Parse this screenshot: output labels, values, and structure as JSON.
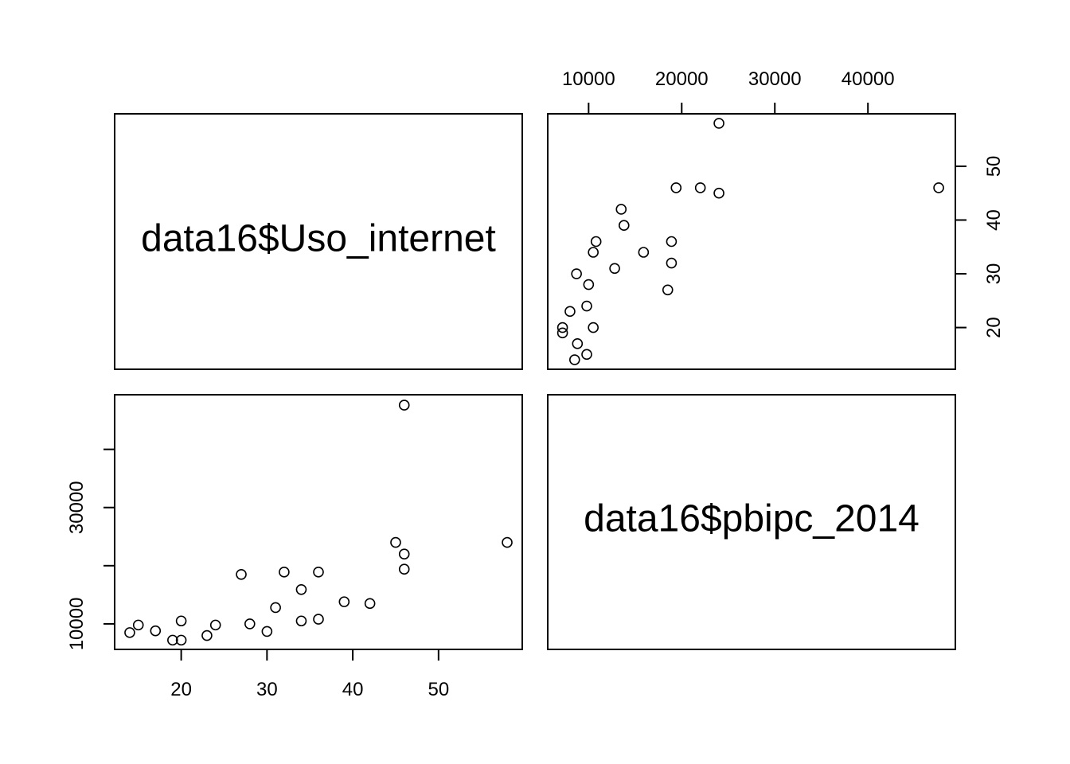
{
  "chart_data": {
    "type": "scatter",
    "variables": [
      "data16$Uso_internet",
      "data16$pbipc_2014"
    ],
    "points": [
      {
        "uso_internet": 14,
        "pbipc_2014": 8500
      },
      {
        "uso_internet": 15,
        "pbipc_2014": 9800
      },
      {
        "uso_internet": 17,
        "pbipc_2014": 8800
      },
      {
        "uso_internet": 19,
        "pbipc_2014": 7200
      },
      {
        "uso_internet": 20,
        "pbipc_2014": 7200
      },
      {
        "uso_internet": 20,
        "pbipc_2014": 10500
      },
      {
        "uso_internet": 23,
        "pbipc_2014": 8000
      },
      {
        "uso_internet": 24,
        "pbipc_2014": 9800
      },
      {
        "uso_internet": 27,
        "pbipc_2014": 18500
      },
      {
        "uso_internet": 28,
        "pbipc_2014": 10000
      },
      {
        "uso_internet": 30,
        "pbipc_2014": 8700
      },
      {
        "uso_internet": 31,
        "pbipc_2014": 12800
      },
      {
        "uso_internet": 32,
        "pbipc_2014": 18900
      },
      {
        "uso_internet": 34,
        "pbipc_2014": 10500
      },
      {
        "uso_internet": 34,
        "pbipc_2014": 15900
      },
      {
        "uso_internet": 36,
        "pbipc_2014": 10800
      },
      {
        "uso_internet": 36,
        "pbipc_2014": 18900
      },
      {
        "uso_internet": 39,
        "pbipc_2014": 13800
      },
      {
        "uso_internet": 42,
        "pbipc_2014": 13500
      },
      {
        "uso_internet": 45,
        "pbipc_2014": 24000
      },
      {
        "uso_internet": 46,
        "pbipc_2014": 19400
      },
      {
        "uso_internet": 46,
        "pbipc_2014": 22000
      },
      {
        "uso_internet": 46,
        "pbipc_2014": 47600
      },
      {
        "uso_internet": 58,
        "pbipc_2014": 24000
      }
    ],
    "uso_internet_ticks": [
      20,
      30,
      40,
      50
    ],
    "pbipc_ticks": [
      10000,
      20000,
      30000,
      40000
    ],
    "pbipc_ticks_labeled_left": [
      10000,
      30000
    ],
    "uso_internet_range": [
      12.24,
      59.76
    ],
    "pbipc_range": [
      5610,
      49390
    ],
    "grid": false
  }
}
